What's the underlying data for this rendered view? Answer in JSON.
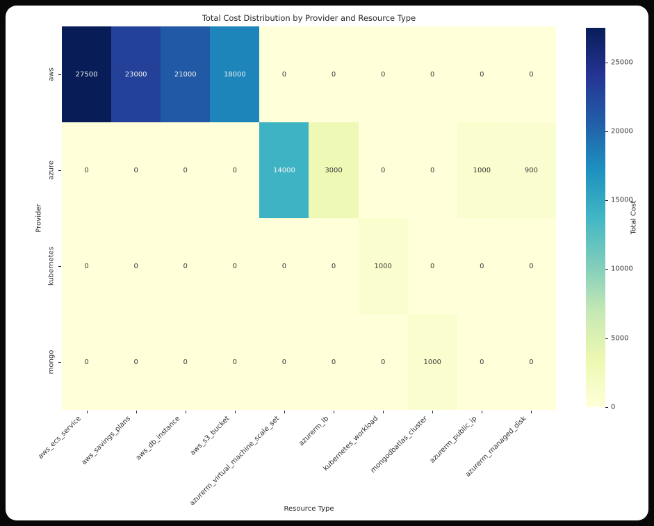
{
  "chart_data": {
    "type": "heatmap",
    "title": "Total Cost Distribution by Provider and Resource Type",
    "xlabel": "Resource Type",
    "ylabel": "Provider",
    "colorbar_label": "Total Cost",
    "colorbar_ticks": [
      0,
      5000,
      10000,
      15000,
      20000,
      25000
    ],
    "vmin": 0,
    "vmax": 27500,
    "rows": [
      "aws",
      "azure",
      "kubernetes",
      "mongo"
    ],
    "columns": [
      "aws_ecs_service",
      "aws_savings_plans",
      "aws_db_instance",
      "aws_s3_bucket",
      "azurerm_virtual_machine_scale_set",
      "azurerm_lb",
      "kubernetes_workload",
      "mongodbatlas_cluster",
      "azurerm_public_ip",
      "azurerm_managed_disk"
    ],
    "values": [
      [
        27500,
        23000,
        21000,
        18000,
        0,
        0,
        0,
        0,
        0,
        0
      ],
      [
        0,
        0,
        0,
        0,
        14000,
        3000,
        0,
        0,
        1000,
        900
      ],
      [
        0,
        0,
        0,
        0,
        0,
        0,
        1000,
        0,
        0,
        0
      ],
      [
        0,
        0,
        0,
        0,
        0,
        0,
        0,
        1000,
        0,
        0
      ]
    ],
    "colormap": "YlGnBu",
    "colormap_stops": [
      "#ffffd9",
      "#edf8b1",
      "#c7e9b4",
      "#7fcdbb",
      "#41b6c4",
      "#1d91c0",
      "#225ea8",
      "#253494",
      "#081d58"
    ],
    "annotation_text_dark": "#3b3b3b",
    "annotation_text_light": "#f2f2f2",
    "legend_position": "right-colorbar",
    "grid": false
  }
}
